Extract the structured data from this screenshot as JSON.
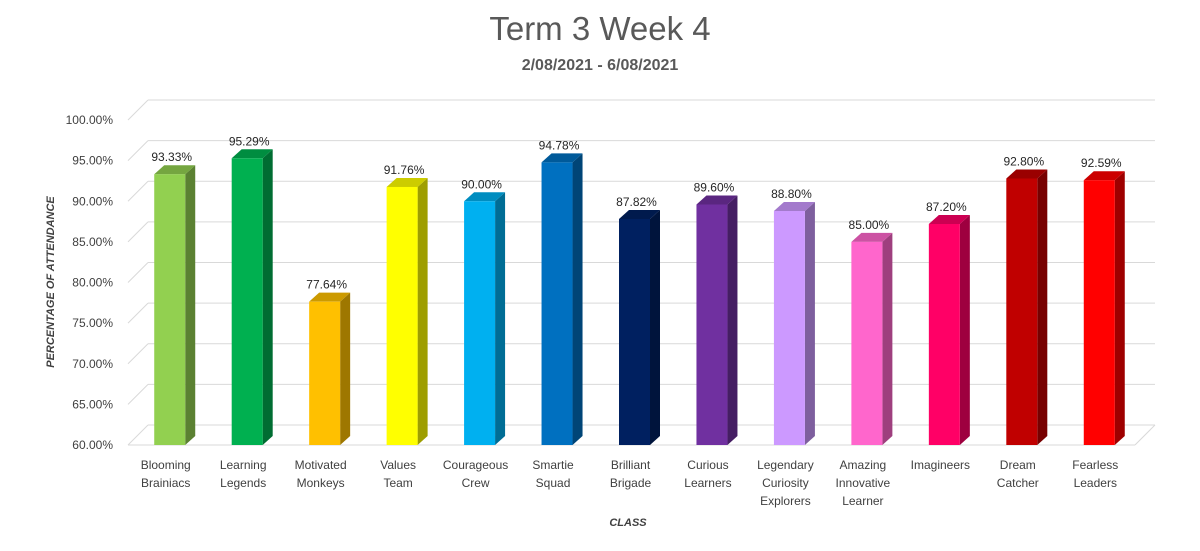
{
  "chart_data": {
    "type": "bar",
    "title": "Term 3 Week 4",
    "subtitle": "2/08/2021 - 6/08/2021",
    "xlabel": "CLASS",
    "ylabel": "PERCENTAGE OF ATTENDANCE",
    "ylim": [
      60,
      100
    ],
    "yticks": [
      "60.00%",
      "65.00%",
      "70.00%",
      "75.00%",
      "80.00%",
      "85.00%",
      "90.00%",
      "95.00%",
      "100.00%"
    ],
    "grid": true,
    "legend": "none",
    "categories": [
      [
        "Blooming",
        "Brainiacs"
      ],
      [
        "Learning",
        "Legends"
      ],
      [
        "Motivated",
        "Monkeys"
      ],
      [
        "Values",
        "Team"
      ],
      [
        "Courageous",
        "Crew"
      ],
      [
        "Smartie",
        "Squad"
      ],
      [
        "Brilliant",
        "Brigade"
      ],
      [
        "Curious",
        "Learners"
      ],
      [
        "Legendary",
        "Curiosity",
        "Explorers"
      ],
      [
        "Amazing",
        "Innovative",
        "Learner"
      ],
      [
        "Imagineers"
      ],
      [
        "Dream",
        "Catcher"
      ],
      [
        "Fearless",
        "Leaders"
      ]
    ],
    "values": [
      93.33,
      95.29,
      77.64,
      91.76,
      90.0,
      94.78,
      87.82,
      89.6,
      88.8,
      85.0,
      87.2,
      92.8,
      92.59
    ],
    "value_labels": [
      "93.33%",
      "95.29%",
      "77.64%",
      "91.76%",
      "90.00%",
      "94.78%",
      "87.82%",
      "89.60%",
      "88.80%",
      "85.00%",
      "87.20%",
      "92.80%",
      "92.59%"
    ],
    "colors": [
      "#92D050",
      "#00B050",
      "#FFC000",
      "#FFFF00",
      "#00B0F0",
      "#0070C0",
      "#002060",
      "#7030A0",
      "#CC99FF",
      "#FF66CC",
      "#FF0066",
      "#C00000",
      "#FF0000"
    ]
  }
}
